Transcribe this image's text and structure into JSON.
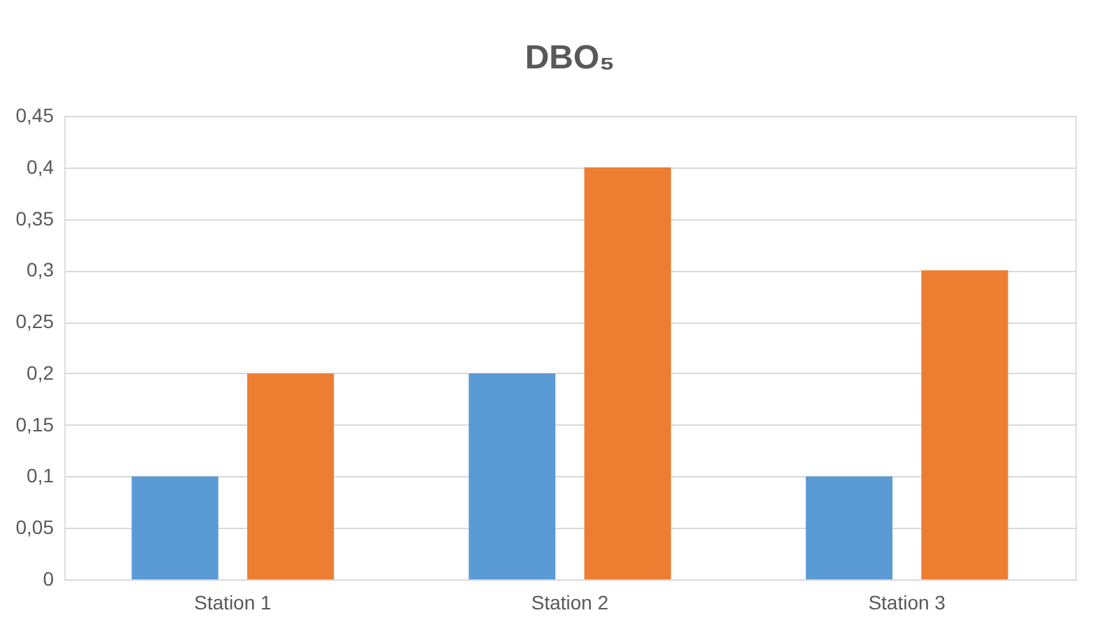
{
  "chart_data": {
    "type": "bar",
    "title": "DBO₅",
    "categories": [
      "Station 1",
      "Station 2",
      "Station 3"
    ],
    "series": [
      {
        "color": "#5b9bd5",
        "values": [
          0.1,
          0.2,
          0.1
        ]
      },
      {
        "color": "#ed7d31",
        "values": [
          0.2,
          0.4,
          0.3
        ]
      }
    ],
    "ylim": [
      0,
      0.45
    ],
    "yticks": [
      0,
      {
        "value": 0.05,
        "label": "0,05"
      },
      {
        "value": 0.1,
        "label": "0,1"
      },
      {
        "value": 0.15,
        "label": "0,15"
      },
      {
        "value": 0.2,
        "label": "0,2"
      },
      {
        "value": 0.25,
        "label": "0,25"
      },
      {
        "value": 0.3,
        "label": "0,3"
      },
      {
        "value": 0.35,
        "label": "0,35"
      },
      {
        "value": 0.4,
        "label": "0,4"
      },
      {
        "value": 0.45,
        "label": "0,45"
      }
    ],
    "grid": "y",
    "legend": false
  }
}
